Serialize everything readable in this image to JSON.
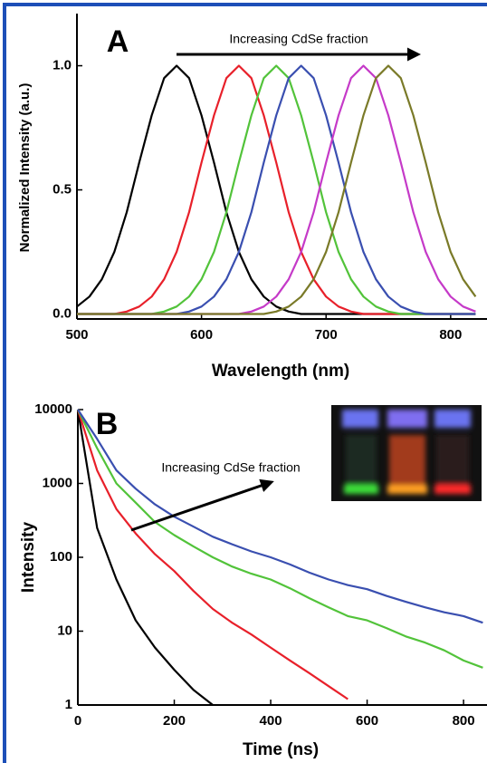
{
  "chart_data": [
    {
      "type": "line",
      "panel_label": "A",
      "annotation": "Increasing CdSe fraction",
      "xlabel": "Wavelength (nm)",
      "ylabel": "Normalized Intensity (a.u.)",
      "log_y": false,
      "xlim": [
        500,
        827
      ],
      "ylim": [
        -0.02,
        1.21
      ],
      "xticks": [
        500,
        600,
        700,
        800
      ],
      "yticks": [
        {
          "value": 0,
          "label": "0.0"
        },
        {
          "value": 0.5,
          "label": "0.5"
        },
        {
          "value": 1,
          "label": "1.0"
        }
      ],
      "x": [
        500,
        510,
        520,
        530,
        540,
        550,
        560,
        570,
        580,
        590,
        600,
        610,
        620,
        630,
        640,
        650,
        660,
        670,
        680,
        690,
        700,
        710,
        720,
        730,
        740,
        750,
        760,
        770,
        780,
        790,
        800,
        810,
        820
      ],
      "series": [
        {
          "color": "#000000",
          "values": [
            0.03,
            0.07,
            0.14,
            0.25,
            0.41,
            0.61,
            0.8,
            0.95,
            1,
            0.95,
            0.8,
            0.61,
            0.41,
            0.25,
            0.14,
            0.07,
            0.03,
            0.01,
            0,
            0,
            0,
            0,
            0,
            0,
            0,
            0,
            0,
            0,
            0,
            0,
            0,
            0,
            0
          ]
        },
        {
          "color": "#e8202a",
          "values": [
            0,
            0,
            0,
            0,
            0.01,
            0.03,
            0.07,
            0.14,
            0.25,
            0.41,
            0.61,
            0.8,
            0.95,
            1,
            0.95,
            0.8,
            0.61,
            0.41,
            0.25,
            0.14,
            0.07,
            0.03,
            0.01,
            0,
            0,
            0,
            0,
            0,
            0,
            0,
            0,
            0,
            0
          ]
        },
        {
          "color": "#52c33a",
          "values": [
            0,
            0,
            0,
            0,
            0,
            0,
            0,
            0.01,
            0.03,
            0.07,
            0.14,
            0.25,
            0.41,
            0.61,
            0.8,
            0.95,
            1,
            0.95,
            0.8,
            0.61,
            0.41,
            0.25,
            0.14,
            0.07,
            0.03,
            0.01,
            0,
            0,
            0,
            0,
            0,
            0,
            0
          ]
        },
        {
          "color": "#3a4fb0",
          "values": [
            0,
            0,
            0,
            0,
            0,
            0,
            0,
            0,
            0,
            0.01,
            0.03,
            0.07,
            0.14,
            0.25,
            0.41,
            0.61,
            0.8,
            0.95,
            1,
            0.95,
            0.8,
            0.61,
            0.41,
            0.25,
            0.14,
            0.07,
            0.03,
            0.01,
            0,
            0,
            0,
            0,
            0
          ]
        },
        {
          "color": "#c53ac8",
          "values": [
            0,
            0,
            0,
            0,
            0,
            0,
            0,
            0,
            0,
            0,
            0,
            0,
            0,
            0,
            0.01,
            0.03,
            0.07,
            0.14,
            0.25,
            0.41,
            0.61,
            0.8,
            0.95,
            1,
            0.95,
            0.8,
            0.61,
            0.41,
            0.25,
            0.14,
            0.07,
            0.03,
            0.01
          ]
        },
        {
          "color": "#7a7a28",
          "values": [
            0,
            0,
            0,
            0,
            0,
            0,
            0,
            0,
            0,
            0,
            0,
            0,
            0,
            0,
            0,
            0,
            0.01,
            0.03,
            0.07,
            0.14,
            0.25,
            0.41,
            0.61,
            0.8,
            0.95,
            1,
            0.95,
            0.8,
            0.61,
            0.41,
            0.25,
            0.14,
            0.07
          ]
        }
      ]
    },
    {
      "type": "line",
      "panel_label": "B",
      "annotation": "Increasing CdSe fraction",
      "xlabel": "Time (ns)",
      "ylabel": "Intensity",
      "log_y": true,
      "xlim": [
        0,
        843
      ],
      "ylim": [
        1,
        10000
      ],
      "xticks": [
        0,
        200,
        400,
        600,
        800
      ],
      "yticks": [
        1,
        10,
        100,
        1000,
        10000
      ],
      "x": [
        0,
        40,
        80,
        120,
        160,
        200,
        240,
        280,
        320,
        360,
        400,
        440,
        480,
        520,
        560,
        600,
        640,
        680,
        720,
        760,
        800,
        840
      ],
      "series": [
        {
          "color": "#000000",
          "values": [
            10000,
            250,
            50,
            14,
            6,
            3,
            1.6,
            1,
            null,
            null,
            null,
            null,
            null,
            null,
            null,
            null,
            null,
            null,
            null,
            null,
            null,
            null
          ]
        },
        {
          "color": "#e8202a",
          "values": [
            10000,
            1500,
            450,
            210,
            110,
            65,
            35,
            20,
            13,
            9,
            6,
            4,
            2.7,
            1.8,
            1.2,
            null,
            null,
            null,
            null,
            null,
            null,
            null
          ]
        },
        {
          "color": "#52c33a",
          "values": [
            10000,
            3000,
            1000,
            550,
            300,
            200,
            140,
            100,
            75,
            60,
            50,
            38,
            28,
            21,
            16,
            14,
            11,
            8.5,
            7,
            5.5,
            4,
            3.2
          ]
        },
        {
          "color": "#3a4fb0",
          "values": [
            10000,
            4000,
            1500,
            850,
            520,
            355,
            260,
            190,
            150,
            120,
            100,
            80,
            62,
            50,
            42,
            37,
            30,
            25,
            21,
            18,
            16,
            13
          ]
        }
      ]
    }
  ]
}
